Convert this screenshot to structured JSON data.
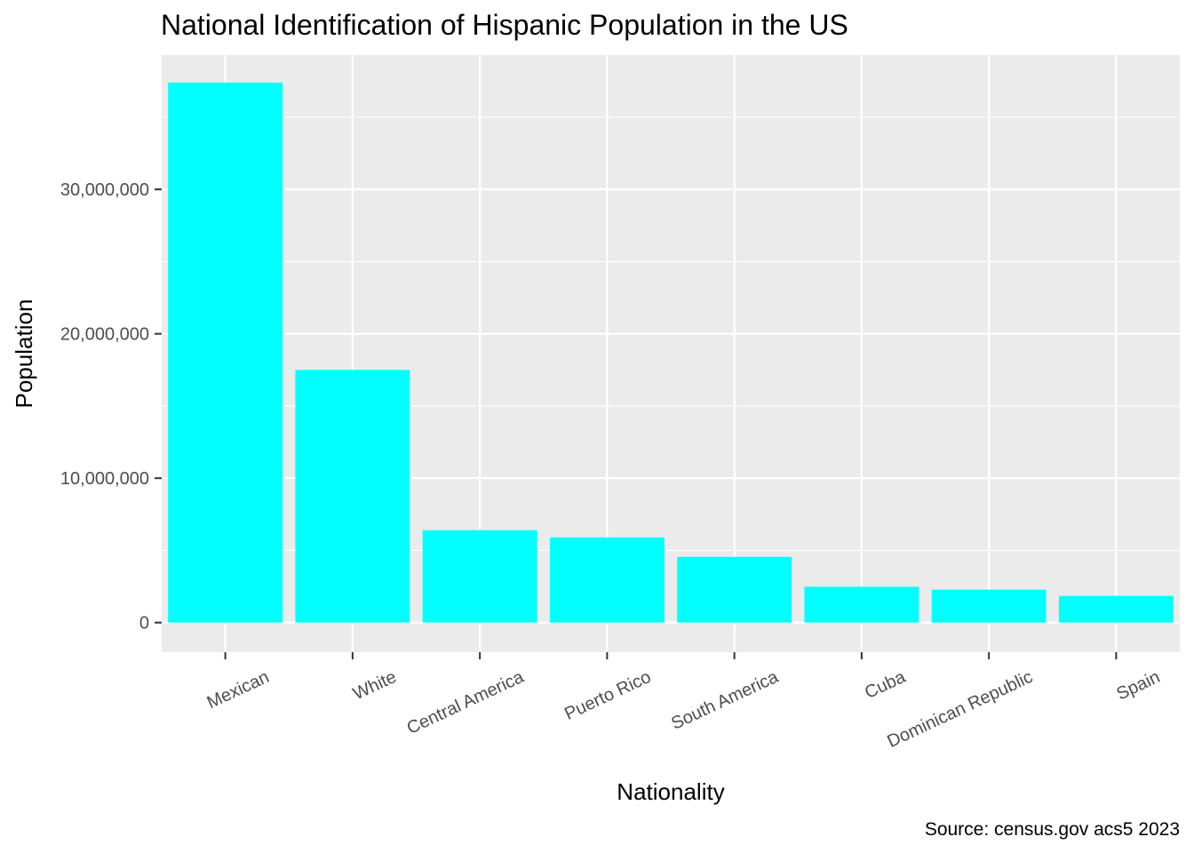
{
  "chart_data": {
    "type": "bar",
    "title": "National Identification of Hispanic Population in the US",
    "xlabel": "Nationality",
    "ylabel": "Population",
    "caption": "Source: census.gov acs5 2023",
    "categories": [
      "Mexican",
      "White",
      "Central America",
      "Puerto Rico",
      "South America",
      "Cuba",
      "Dominican Republic",
      "Spain"
    ],
    "values": [
      37400000,
      17500000,
      6400000,
      5900000,
      4550000,
      2480000,
      2280000,
      1850000
    ],
    "ylim": [
      -2050000,
      39300000
    ],
    "yticks": [
      0,
      10000000,
      20000000,
      30000000
    ],
    "ytick_labels": [
      "0",
      "10,000,000",
      "20,000,000",
      "30,000,000"
    ],
    "grid": true,
    "legend": "none",
    "colors": {
      "bar": "#00ffff",
      "panel": "#ebebeb",
      "grid": "#ffffff",
      "tick_text": "#4d4d4d",
      "text": "#000000"
    }
  }
}
